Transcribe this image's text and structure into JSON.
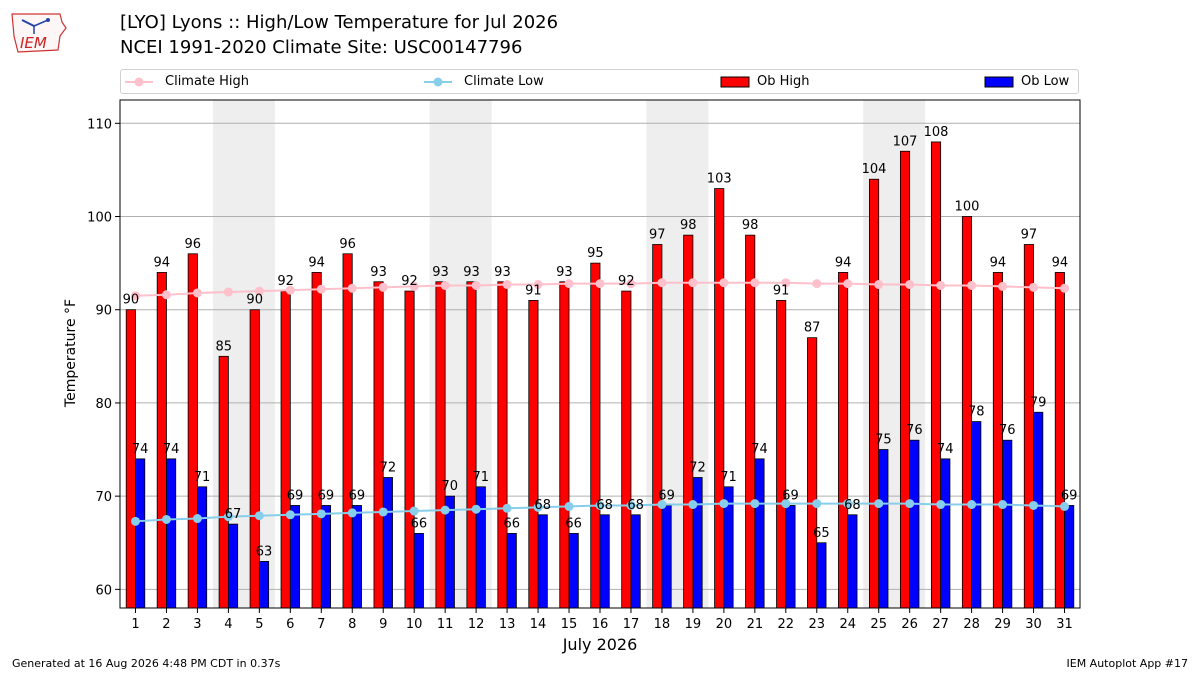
{
  "header": {
    "logo_text": "IEM",
    "title_line1": "[LYO] Lyons :: High/Low Temperature for Jul 2026",
    "title_line2": "NCEI 1991-2020 Climate Site: USC00147796"
  },
  "legend": {
    "climate_high": "Climate High",
    "climate_low": "Climate Low",
    "ob_high": "Ob High",
    "ob_low": "Ob Low"
  },
  "footer": {
    "generated": "Generated at 16 Aug 2026 4:48 PM CDT in 0.37s",
    "app": "IEM Autoplot App #17"
  },
  "colors": {
    "ob_high": "#ff0000",
    "ob_low": "#0000ff",
    "climate_high": "#ffc0cb",
    "climate_low": "#87ceeb",
    "weekend_shade": "#eeeeee"
  },
  "chart_data": {
    "type": "bar",
    "xlabel": "July 2026",
    "ylabel": "Temperature °F",
    "ylim": [
      58,
      112.5
    ],
    "yticks": [
      60,
      70,
      80,
      90,
      100,
      110
    ],
    "grid": true,
    "legend_position": "top",
    "categories": [
      1,
      2,
      3,
      4,
      5,
      6,
      7,
      8,
      9,
      10,
      11,
      12,
      13,
      14,
      15,
      16,
      17,
      18,
      19,
      20,
      21,
      22,
      23,
      24,
      25,
      26,
      27,
      28,
      29,
      30,
      31
    ],
    "shaded_days": [
      [
        4,
        5
      ],
      [
        11,
        12
      ],
      [
        18,
        19
      ],
      [
        25,
        26
      ]
    ],
    "series": [
      {
        "name": "Ob High",
        "kind": "bar",
        "values": [
          90,
          94,
          96,
          85,
          90,
          92,
          94,
          96,
          93,
          92,
          93,
          93,
          93,
          91,
          93,
          95,
          92,
          97,
          98,
          103,
          98,
          91,
          87,
          94,
          104,
          107,
          108,
          100,
          94,
          97,
          94
        ]
      },
      {
        "name": "Ob Low",
        "kind": "bar",
        "values": [
          74,
          74,
          71,
          67,
          63,
          69,
          69,
          69,
          72,
          66,
          70,
          71,
          66,
          68,
          66,
          68,
          68,
          69,
          72,
          71,
          74,
          69,
          65,
          68,
          75,
          76,
          74,
          78,
          76,
          79,
          69
        ]
      },
      {
        "name": "Climate High",
        "kind": "line",
        "values": [
          91.5,
          91.6,
          91.8,
          91.9,
          92.0,
          92.1,
          92.2,
          92.3,
          92.4,
          92.5,
          92.6,
          92.6,
          92.7,
          92.7,
          92.8,
          92.8,
          92.8,
          92.9,
          92.9,
          92.9,
          92.9,
          92.9,
          92.8,
          92.8,
          92.7,
          92.7,
          92.6,
          92.6,
          92.5,
          92.4,
          92.3
        ]
      },
      {
        "name": "Climate Low",
        "kind": "line",
        "values": [
          67.3,
          67.5,
          67.6,
          67.8,
          67.9,
          68.0,
          68.1,
          68.2,
          68.3,
          68.4,
          68.5,
          68.6,
          68.7,
          68.8,
          68.9,
          69.0,
          69.0,
          69.1,
          69.1,
          69.2,
          69.2,
          69.2,
          69.2,
          69.2,
          69.2,
          69.2,
          69.1,
          69.1,
          69.1,
          69.0,
          68.9
        ]
      }
    ]
  }
}
